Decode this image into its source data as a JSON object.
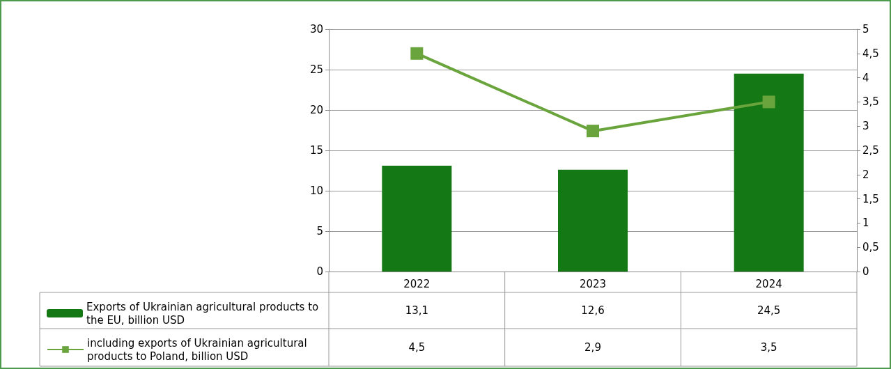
{
  "chart_data": {
    "type": "bar",
    "categories": [
      "2022",
      "2023",
      "2024"
    ],
    "series": [
      {
        "name": "Exports of Ukrainian agricultural products to the EU, billion USD",
        "color": "#147814",
        "values": [
          13.1,
          12.6,
          24.5
        ],
        "value_labels": [
          "13,1",
          "12,6",
          "24,5"
        ]
      },
      {
        "name": "including exports of Ukrainian agricultural products to Poland, billion USD",
        "type": "line",
        "axis": "y2",
        "color": "#6aa43c",
        "marker": "square",
        "values": [
          4.5,
          2.9,
          3.5
        ],
        "value_labels": [
          "4,5",
          "2,9",
          "3,5"
        ]
      }
    ],
    "ylim": [
      0,
      30
    ],
    "yticks": [
      0,
      5,
      10,
      15,
      20,
      25,
      30
    ],
    "y2lim": [
      0,
      5
    ],
    "y2ticks": [
      0,
      {
        "value": 0.5,
        "label": "0,5"
      },
      1,
      {
        "value": 1.5,
        "label": "1,5"
      },
      2,
      {
        "value": 2.5,
        "label": "2,5"
      },
      3,
      {
        "value": 3.5,
        "label": "3,5"
      },
      4,
      {
        "value": 4.5,
        "label": "4,5"
      },
      5
    ],
    "grid": "y",
    "legend": "bottom left",
    "data_labels": true
  }
}
